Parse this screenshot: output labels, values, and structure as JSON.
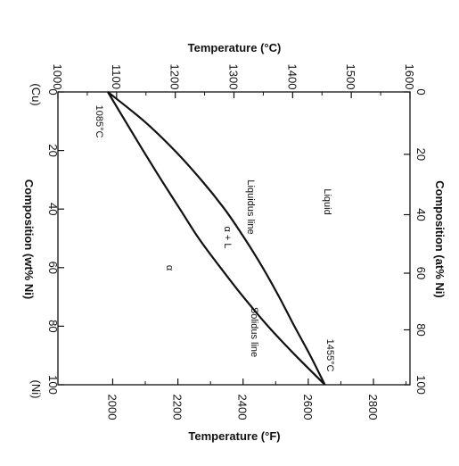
{
  "chart_data": {
    "type": "line",
    "title": "",
    "axes": {
      "celsius": {
        "label": "Temperature (°C)",
        "range": [
          1000,
          1600
        ],
        "ticks": [
          1000,
          1100,
          1200,
          1300,
          1400,
          1500,
          1600
        ]
      },
      "fahrenheit": {
        "label": "Temperature (°F)",
        "ticks": [
          2000,
          2200,
          2400,
          2600,
          2800
        ]
      },
      "composition_wt": {
        "label": "Composition (wt% Ni)",
        "range": [
          0,
          100
        ],
        "ticks": [
          0,
          20,
          40,
          60,
          80,
          100
        ],
        "end_labels": [
          "(Cu)",
          "(Ni)"
        ]
      },
      "composition_at": {
        "label": "Composition (at% Ni)",
        "ticks": [
          0,
          20,
          40,
          60,
          80,
          100
        ]
      }
    },
    "series": [
      {
        "name": "Liquidus line",
        "x": [
          0,
          10,
          20,
          30,
          40,
          50,
          60,
          70,
          80,
          90,
          100
        ],
        "y": [
          1085,
          1147,
          1199,
          1244,
          1284,
          1318,
          1349,
          1377,
          1403,
          1430,
          1455
        ]
      },
      {
        "name": "Solidus line",
        "x": [
          0,
          10,
          20,
          30,
          40,
          50,
          60,
          70,
          80,
          90,
          100
        ],
        "y": [
          1085,
          1115,
          1145,
          1176,
          1208,
          1240,
          1277,
          1316,
          1358,
          1405,
          1455
        ]
      }
    ],
    "annotations": {
      "liquid": "Liquid",
      "two_phase": "α + L",
      "alpha": "α",
      "cu_melting": "1085°C",
      "ni_melting": "1455°C"
    },
    "grid": false
  }
}
